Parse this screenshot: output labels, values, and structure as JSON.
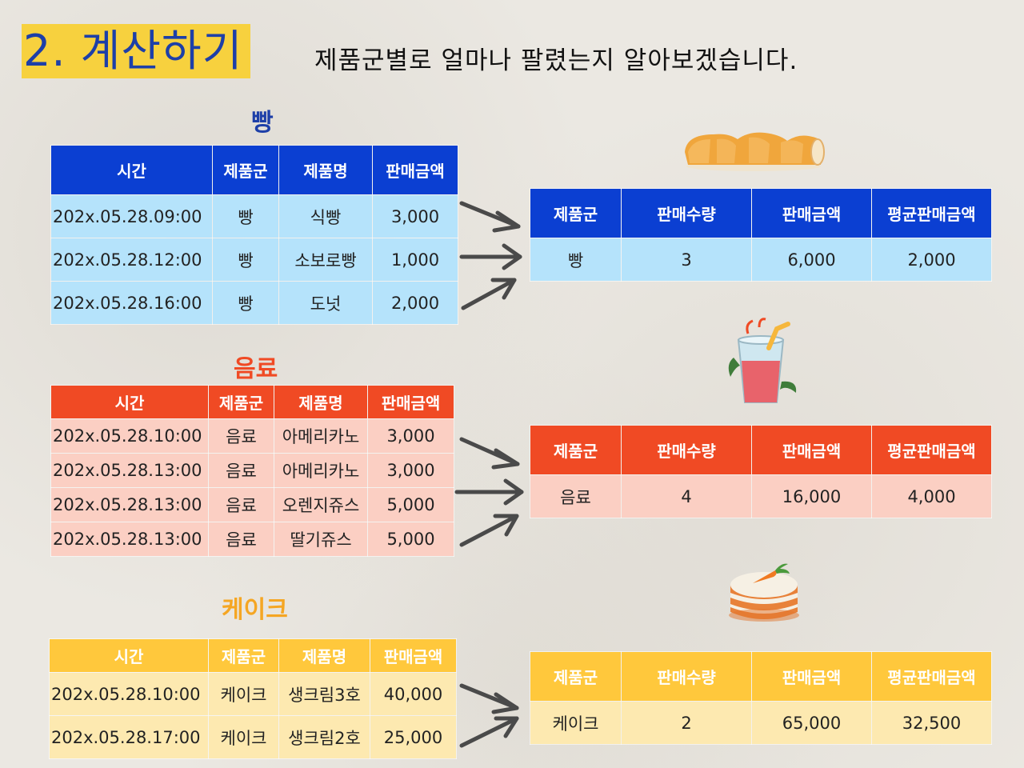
{
  "title": "2. 계산하기",
  "subtitle": "제품군별로 얼마나 팔렸는지 알아보겠습니다.",
  "colors": {
    "bread": "#0b3fd2",
    "drink": "#f04a24",
    "cake": "#ffc83c",
    "title_bg": "#f7d13e",
    "title_text": "#1d3fa8"
  },
  "source_headers": [
    "시간",
    "제품군",
    "제품명",
    "판매금액"
  ],
  "summary_headers": [
    "제품군",
    "판매수량",
    "판매금액",
    "평균판매금액"
  ],
  "sections": {
    "bread": {
      "label": "빵",
      "rows": [
        [
          "202x.05.28.09:00",
          "빵",
          "식빵",
          "3,000"
        ],
        [
          "202x.05.28.12:00",
          "빵",
          "소보로빵",
          "1,000"
        ],
        [
          "202x.05.28.16:00",
          "빵",
          "도넛",
          "2,000"
        ]
      ],
      "summary": [
        "빵",
        "3",
        "6,000",
        "2,000"
      ]
    },
    "drink": {
      "label": "음료",
      "rows": [
        [
          "202x.05.28.10:00",
          "음료",
          "아메리카노",
          "3,000"
        ],
        [
          "202x.05.28.13:00",
          "음료",
          "아메리카노",
          "3,000"
        ],
        [
          "202x.05.28.13:00",
          "음료",
          "오렌지쥬스",
          "5,000"
        ],
        [
          "202x.05.28.13:00",
          "음료",
          "딸기쥬스",
          "5,000"
        ]
      ],
      "summary": [
        "음료",
        "4",
        "16,000",
        "4,000"
      ]
    },
    "cake": {
      "label": "케이크",
      "rows": [
        [
          "202x.05.28.10:00",
          "케이크",
          "생크림3호",
          "40,000"
        ],
        [
          "202x.05.28.17:00",
          "케이크",
          "생크림2호",
          "25,000"
        ]
      ],
      "summary": [
        "케이크",
        "2",
        "65,000",
        "32,500"
      ]
    }
  },
  "icons": {
    "bread": "bread-loaf-icon",
    "drink": "juice-cup-icon",
    "cake": "carrot-cake-icon",
    "arrow": "arrow-right-icon"
  }
}
